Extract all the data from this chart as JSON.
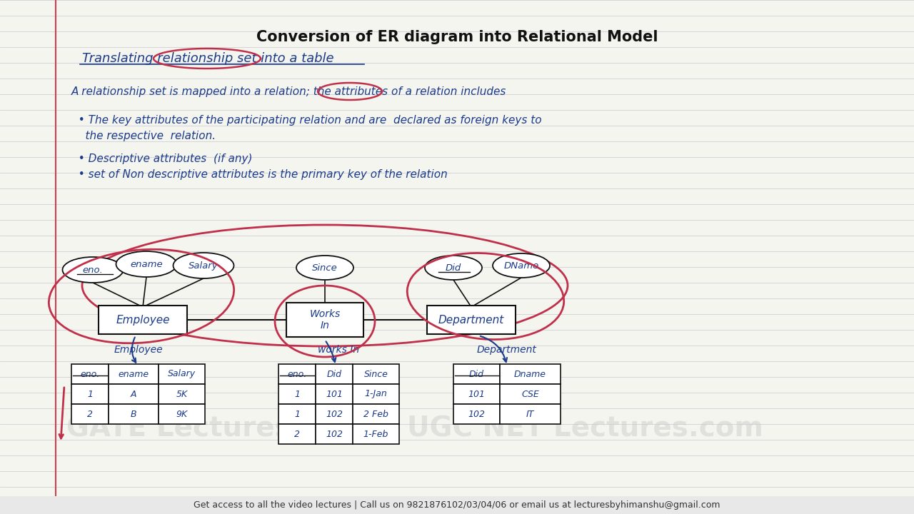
{
  "title": "Conversion of ER diagram into Relational Model",
  "bg_color": "#f5f5f0",
  "line_color": "#c8c8d0",
  "red_color": "#c0304a",
  "blue_color": "#1a3a8a",
  "black_color": "#111111",
  "subtitle": "Translating relationship set into a table",
  "text_lines": [
    "A relationship set is mapped into a relation; the attributes of a relation includes",
    "  • The key attributes of the participating relation and are  declared as foreign keys to",
    "    the respective  relation.",
    "  • Descriptive attributes  (if any)",
    "  • set of Non descriptive attributes is the primary key of the relation"
  ],
  "footer": "Get access to all the video lectures | Call us on 9821876102/03/04/06 or email us at lecturesbyhimanshu@gmail.com",
  "watermark1": "GATE Lectures",
  "watermark2": "UGC NET Lectures.com",
  "emp_attrs": [
    "eno.",
    "ename",
    "Salary"
  ],
  "dept_attrs": [
    "Did",
    "DName"
  ],
  "rel_attr": "Since",
  "entity1": "Employee",
  "entity2": "Department",
  "relationship": "Works\nIn",
  "table1_title": "Employee",
  "table1_headers": [
    "eno.",
    "ename",
    "Salary"
  ],
  "table1_rows": [
    [
      "1",
      "A",
      "5K"
    ],
    [
      "2",
      "B",
      "9K"
    ]
  ],
  "table2_title": "works In",
  "table2_headers": [
    "eno.",
    "Did",
    "Since"
  ],
  "table2_rows": [
    [
      "1",
      "101",
      "1-Jan"
    ],
    [
      "1",
      "102",
      "2 Feb"
    ],
    [
      "2",
      "102",
      "1-Feb"
    ]
  ],
  "table3_title": "Department",
  "table3_headers": [
    "Did",
    "Dname"
  ],
  "table3_rows": [
    [
      "101",
      "CSE"
    ],
    [
      "102",
      "IT"
    ]
  ]
}
